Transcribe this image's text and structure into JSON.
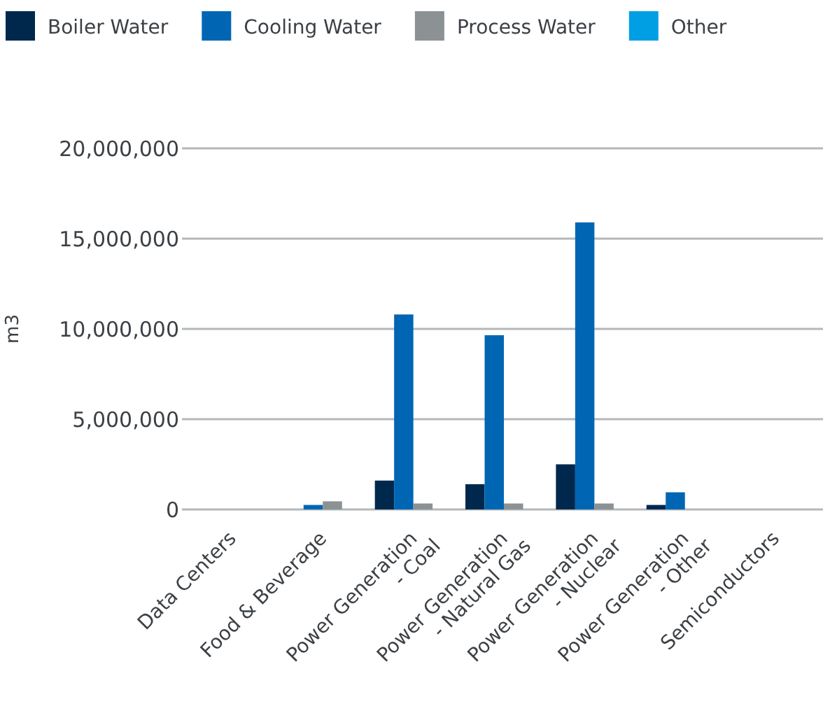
{
  "chart_data": {
    "type": "bar",
    "ylabel": "m3",
    "categories": [
      "Data Centers",
      "Food & Beverage",
      "Power Generation - Coal",
      "Power Generation - Natural Gas",
      "Power Generation - Nuclear",
      "Power Generation - Other",
      "Semiconductors"
    ],
    "series": [
      {
        "name": "Boiler Water",
        "color": "#00284d",
        "values": [
          0,
          0,
          1600000,
          1400000,
          2500000,
          250000,
          0
        ]
      },
      {
        "name": "Cooling Water",
        "color": "#0066b3",
        "values": [
          0,
          250000,
          10800000,
          9650000,
          15900000,
          950000,
          0
        ]
      },
      {
        "name": "Process Water",
        "color": "#8c9194",
        "values": [
          0,
          450000,
          330000,
          330000,
          330000,
          0,
          0
        ]
      },
      {
        "name": "Other",
        "color": "#009fe3",
        "values": [
          0,
          0,
          0,
          0,
          0,
          0,
          0
        ]
      }
    ],
    "ylim": [
      0,
      20000000
    ],
    "yticks": [
      {
        "value": 0,
        "label": "0"
      },
      {
        "value": 5000000,
        "label": "5,000,000"
      },
      {
        "value": 10000000,
        "label": "10,000,000"
      },
      {
        "value": 15000000,
        "label": "15,000,000"
      },
      {
        "value": 20000000,
        "label": "20,000,000"
      }
    ],
    "grid": "y",
    "legend": "top left"
  }
}
